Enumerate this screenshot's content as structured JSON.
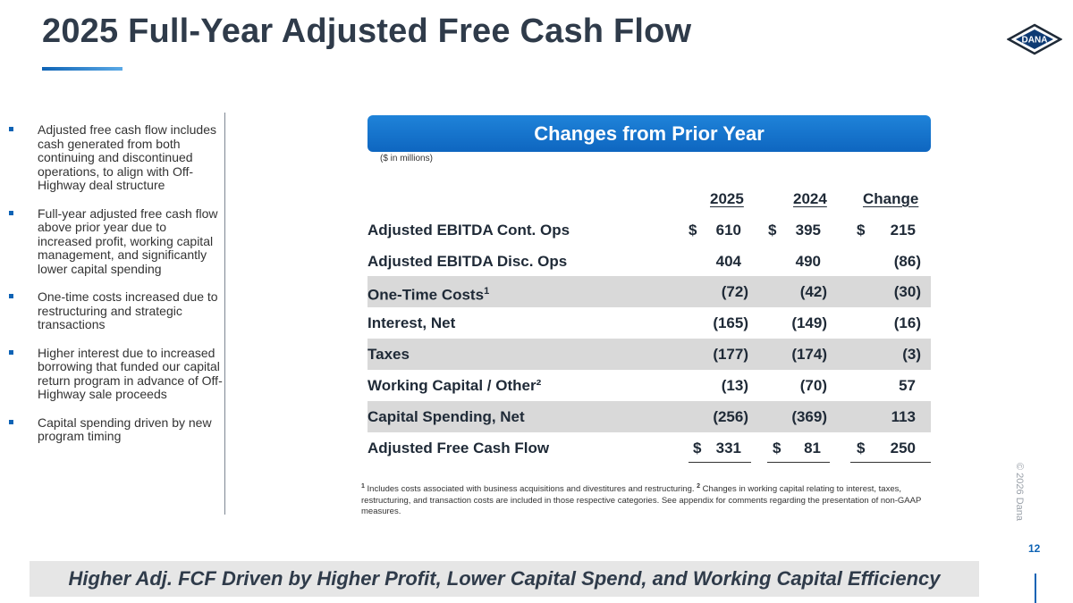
{
  "title": "2025 Full-Year Adjusted Free Cash Flow",
  "logo_text": "DANA",
  "bullets": [
    "Adjusted free cash flow includes cash generated from both continuing and discontinued operations, to align with Off-Highway deal structure",
    "Full-year adjusted free cash flow above prior year due to increased profit, working capital management, and significantly lower capital spending",
    "One-time costs increased due to restructuring and strategic transactions",
    "Higher interest due to increased borrowing that funded our capital return program in advance of Off-Highway sale proceeds",
    "Capital spending driven by new program timing"
  ],
  "table": {
    "header": "Changes from Prior Year",
    "units_note": "($ in millions)",
    "columns": [
      "2025",
      "2024",
      "Change"
    ],
    "currency_symbol": "$",
    "rows": [
      {
        "label": "Adjusted EBITDA Cont. Ops",
        "sup": "",
        "v2025": "610",
        "v2024": "395",
        "change": "215"
      },
      {
        "label": "Adjusted EBITDA Disc. Ops",
        "sup": "",
        "v2025": "404",
        "v2024": "490",
        "change": "(86)"
      },
      {
        "label": "One-Time Costs",
        "sup": "1",
        "v2025": "(72)",
        "v2024": "(42)",
        "change": "(30)"
      },
      {
        "label": "Interest, Net",
        "sup": "",
        "v2025": "(165)",
        "v2024": "(149)",
        "change": "(16)"
      },
      {
        "label": "Taxes",
        "sup": "",
        "v2025": "(177)",
        "v2024": "(174)",
        "change": "(3)"
      },
      {
        "label": "Working Capital / Other²",
        "sup": "",
        "v2025": "(13)",
        "v2024": "(70)",
        "change": "57"
      },
      {
        "label": "Capital Spending, Net",
        "sup": "",
        "v2025": "(256)",
        "v2024": "(369)",
        "change": "113"
      },
      {
        "label": "Adjusted Free Cash Flow",
        "sup": "",
        "v2025": "331",
        "v2024": "81",
        "change": "250"
      }
    ]
  },
  "footnote": {
    "marker1": "1",
    "text1": " Includes costs associated with business acquisitions and divestitures and restructuring. ",
    "marker2": "2",
    "text2": " Changes in working capital relating to interest, taxes, restructuring, and transaction costs are included in those respective categories.  See appendix for comments regarding the presentation of non-GAAP measures."
  },
  "copyright": "© 2026 Dana",
  "page_number": "12",
  "banner": "Higher Adj. FCF Driven by Higher Profit, Lower Capital Spend, and Working Capital Efficiency",
  "colors": {
    "accent": "#0e63b5",
    "header": "#1f83d9",
    "shade": "#d9d9d9",
    "title": "#2f3b4a"
  }
}
